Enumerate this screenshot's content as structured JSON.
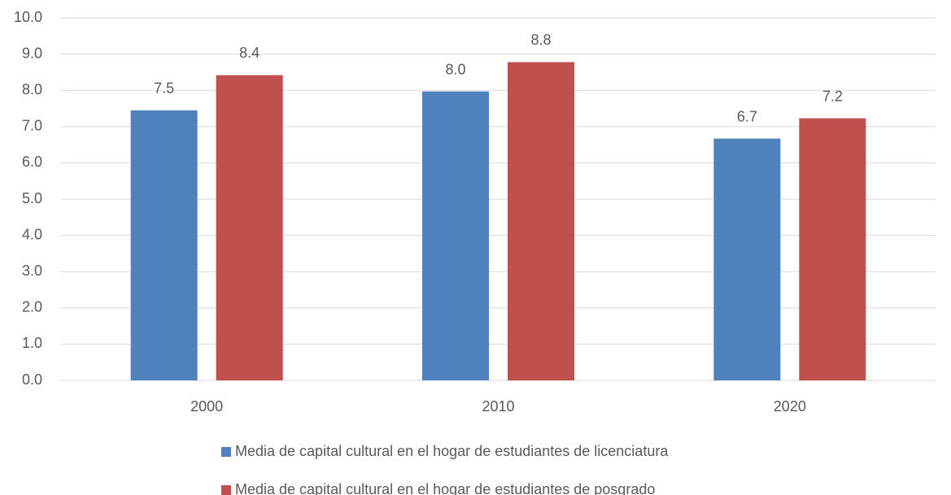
{
  "chart_data": {
    "type": "bar",
    "categories": [
      "2000",
      "2010",
      "2020"
    ],
    "series": [
      {
        "name": "Media de capital cultural en el hogar de estudiantes de licenciatura",
        "color": "#4f81bd",
        "values": [
          7.45,
          7.97,
          6.67
        ],
        "value_labels": [
          "7.5",
          "8.0",
          "6.7"
        ]
      },
      {
        "name": "Media de capital cultural en el hogar de estudiantes de posgrado",
        "color": "#c0504d",
        "values": [
          8.42,
          8.78,
          7.23
        ],
        "value_labels": [
          "8.4",
          "8.8",
          "7.2"
        ]
      }
    ],
    "ylim": [
      0,
      10
    ],
    "yticks": [
      {
        "value": 0,
        "label": "0.0"
      },
      {
        "value": 1,
        "label": "1.0"
      },
      {
        "value": 2,
        "label": "2.0"
      },
      {
        "value": 3,
        "label": "3.0"
      },
      {
        "value": 4,
        "label": "4.0"
      },
      {
        "value": 5,
        "label": "5.0"
      },
      {
        "value": 6,
        "label": "6.0"
      },
      {
        "value": 7,
        "label": "7.0"
      },
      {
        "value": 8,
        "label": "8.0"
      },
      {
        "value": 9,
        "label": "9.0"
      },
      {
        "value": 10,
        "label": "10.0"
      }
    ],
    "grid": true,
    "legend": "bottom"
  }
}
